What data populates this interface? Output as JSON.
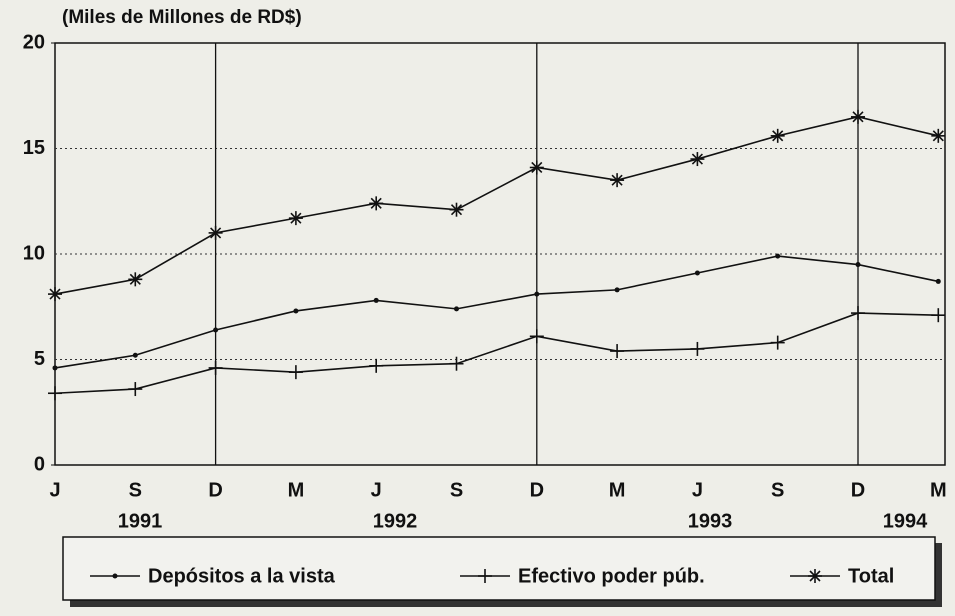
{
  "chart_data": {
    "type": "line",
    "y_axis_label": "(Miles de Millones de RD$)",
    "categories": [
      "J",
      "S",
      "D",
      "M",
      "J",
      "S",
      "D",
      "M",
      "J",
      "S",
      "D",
      "M"
    ],
    "years": [
      "1991",
      "1992",
      "1993",
      "1994"
    ],
    "series": [
      {
        "name": "Depósitos a la vista",
        "color": "#111111",
        "marker": "dot",
        "values": [
          4.6,
          5.2,
          6.4,
          7.3,
          7.8,
          7.4,
          8.1,
          8.3,
          9.1,
          9.9,
          9.5,
          8.7
        ]
      },
      {
        "name": "Efectivo poder púb.",
        "color": "#111111",
        "marker": "plus",
        "values": [
          3.4,
          3.6,
          4.6,
          4.4,
          4.7,
          4.8,
          6.1,
          5.4,
          5.5,
          5.8,
          7.2,
          7.1
        ]
      },
      {
        "name": "Total",
        "color": "#111111",
        "marker": "star",
        "values": [
          8.1,
          8.8,
          11.0,
          11.7,
          12.4,
          12.1,
          14.1,
          13.5,
          14.5,
          15.6,
          16.5,
          15.6
        ]
      }
    ],
    "ylim": [
      0,
      20
    ],
    "yticks": [
      0,
      5,
      10,
      15,
      20
    ],
    "grid": true,
    "grid_style": "dotted"
  }
}
